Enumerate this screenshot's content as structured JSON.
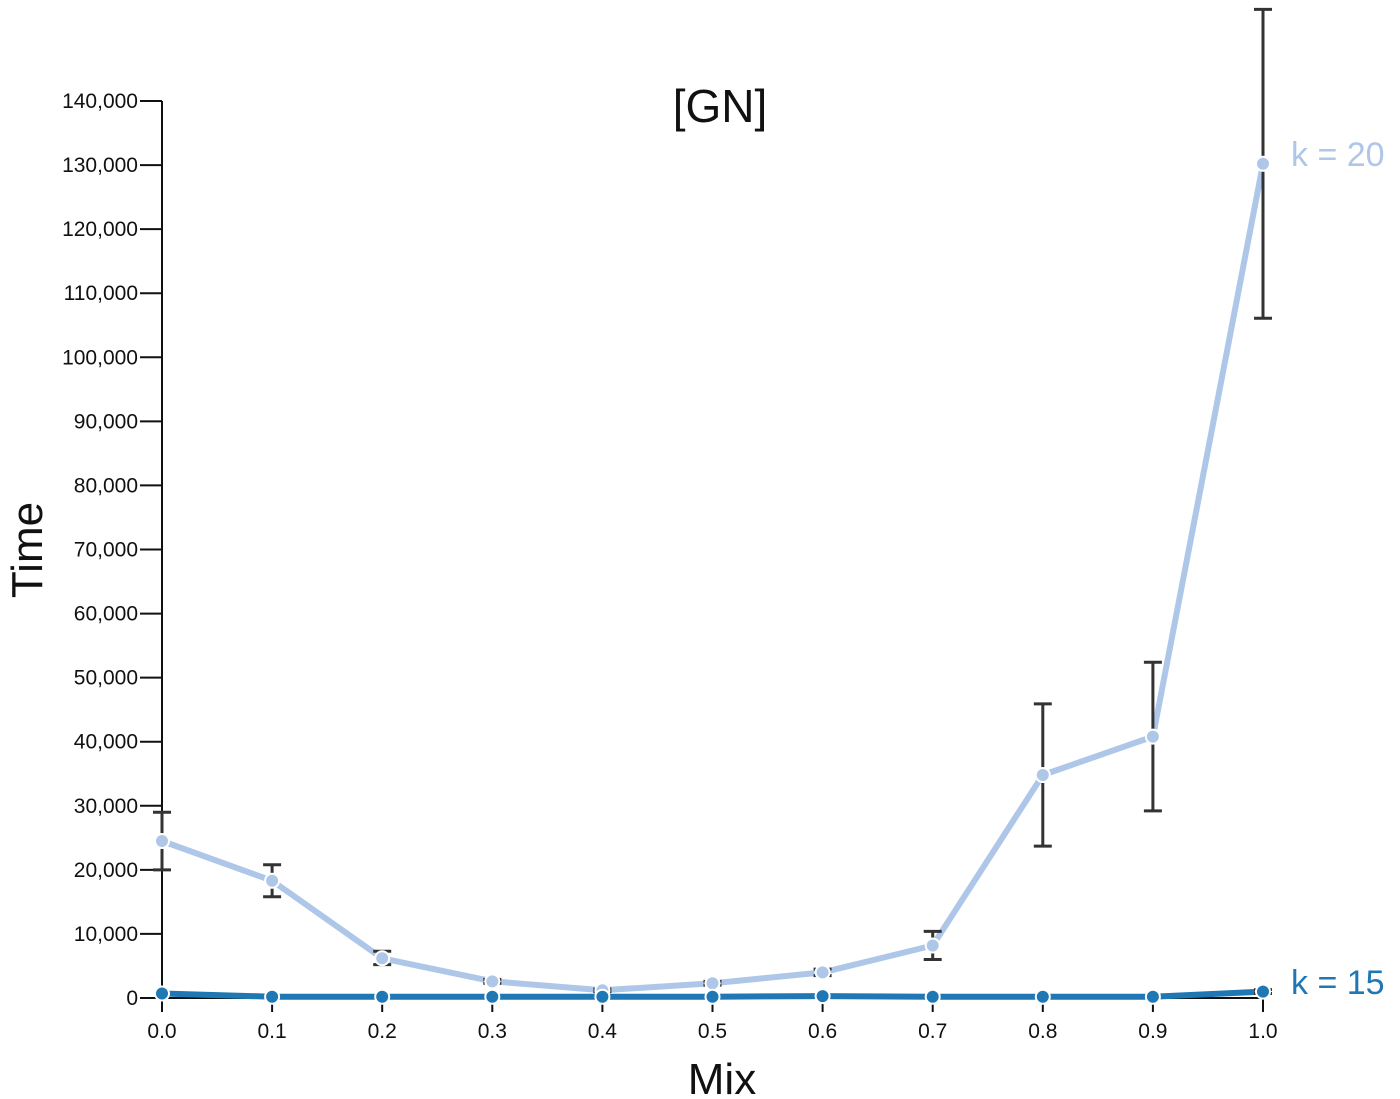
{
  "chart_data": {
    "type": "line",
    "title": "[GN]",
    "xlabel": "Mix",
    "ylabel": "Time",
    "xlim": [
      0,
      1
    ],
    "ylim": [
      0,
      140000
    ],
    "grid": false,
    "legend": "inline labels at right end of lines",
    "x_ticks": [
      "0.0",
      "0.1",
      "0.2",
      "0.3",
      "0.4",
      "0.5",
      "0.6",
      "0.7",
      "0.8",
      "0.9",
      "1.0"
    ],
    "y_ticks": [
      "0",
      "10,000",
      "20,000",
      "30,000",
      "40,000",
      "50,000",
      "60,000",
      "70,000",
      "80,000",
      "90,000",
      "100,000",
      "110,000",
      "120,000",
      "130,000",
      "140,000"
    ],
    "x": [
      0.0,
      0.1,
      0.2,
      0.3,
      0.4,
      0.5,
      0.6,
      0.7,
      0.8,
      0.9,
      1.0
    ],
    "series": [
      {
        "name": "k = 20",
        "color": "#aec7e8",
        "values": [
          24500,
          18300,
          6200,
          2600,
          1200,
          2300,
          4000,
          8200,
          34800,
          40800,
          130200
        ],
        "error_low": [
          20000,
          15800,
          5200,
          2300,
          1000,
          2000,
          3500,
          6000,
          23700,
          29200,
          106100
        ],
        "error_high": [
          29000,
          20800,
          7300,
          2900,
          1400,
          2600,
          4500,
          10400,
          45900,
          52400,
          154300
        ]
      },
      {
        "name": "k = 15",
        "color": "#1f77b4",
        "values": [
          700,
          200,
          200,
          200,
          200,
          200,
          300,
          200,
          200,
          200,
          1000
        ],
        "error_low": [
          600,
          150,
          150,
          150,
          150,
          150,
          250,
          150,
          150,
          150,
          700
        ],
        "error_high": [
          800,
          250,
          250,
          250,
          250,
          250,
          350,
          250,
          250,
          250,
          1300
        ]
      }
    ]
  }
}
